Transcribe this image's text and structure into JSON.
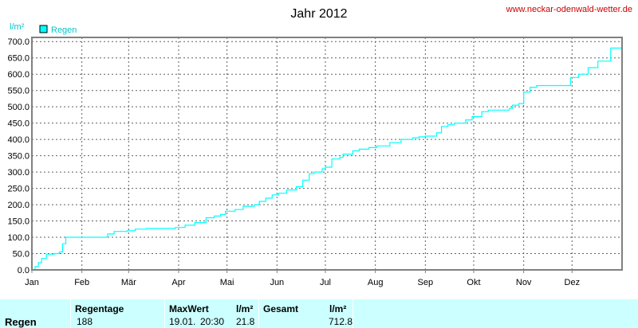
{
  "header": {
    "title": "Jahr 2012",
    "url": "www.neckar-odenwald-wetter.de"
  },
  "chart_data": {
    "type": "line",
    "title": "Jahr 2012",
    "ylabel": "l/m²",
    "ylim": [
      0,
      712.8
    ],
    "yticks": [
      "0.0",
      "50.0",
      "100.0",
      "150.0",
      "200.0",
      "250.0",
      "300.0",
      "350.0",
      "400.0",
      "450.0",
      "500.0",
      "550.0",
      "600.0",
      "650.0",
      "700.0"
    ],
    "xticks": [
      "Jan",
      "Feb",
      "Mär",
      "Apr",
      "Mai",
      "Jun",
      "Jul",
      "Aug",
      "Sep",
      "Okt",
      "Nov",
      "Dez"
    ],
    "xticks_day": [
      0,
      31,
      60,
      91,
      121,
      152,
      182,
      213,
      244,
      274,
      305,
      335
    ],
    "xlim_day": [
      0,
      366
    ],
    "grid": true,
    "legend": "top-left",
    "series": [
      {
        "name": "Regen",
        "color": "#00ffff",
        "x_day": [
          0,
          2,
          4,
          6,
          9,
          14,
          17,
          19,
          21,
          31,
          44,
          47,
          51,
          59,
          64,
          71,
          82,
          89,
          95,
          101,
          108,
          113,
          117,
          120,
          126,
          131,
          138,
          141,
          145,
          149,
          153,
          158,
          164,
          168,
          172,
          175,
          180,
          182,
          186,
          191,
          193,
          199,
          203,
          209,
          214,
          222,
          229,
          236,
          240,
          244,
          251,
          254,
          258,
          262,
          269,
          273,
          279,
          283,
          291,
          296,
          298,
          302,
          305,
          309,
          313,
          319,
          328,
          334,
          339,
          345,
          351,
          359,
          366
        ],
        "y": [
          0,
          10,
          22,
          35,
          48,
          50,
          55,
          80,
          100,
          100,
          100,
          110,
          118,
          120,
          125,
          127,
          127,
          130,
          137,
          145,
          160,
          165,
          170,
          180,
          185,
          195,
          200,
          210,
          220,
          230,
          235,
          245,
          255,
          275,
          295,
          300,
          310,
          315,
          340,
          345,
          355,
          365,
          370,
          375,
          380,
          390,
          400,
          405,
          408,
          410,
          420,
          440,
          445,
          450,
          460,
          470,
          485,
          490,
          490,
          495,
          505,
          510,
          545,
          560,
          565,
          565,
          565,
          590,
          600,
          620,
          640,
          680,
          712.8
        ]
      }
    ]
  },
  "stats": {
    "row_label": "Regen",
    "regentage_header": "Regentage",
    "regentage_value": "188",
    "maxwert_header": "MaxWert",
    "maxwert_unit": "l/m²",
    "maxwert_date": "19.01.",
    "maxwert_time": "20:30",
    "maxwert_value": "21.8",
    "gesamt_header": "Gesamt",
    "gesamt_unit": "l/m²",
    "gesamt_value": "712.8"
  }
}
